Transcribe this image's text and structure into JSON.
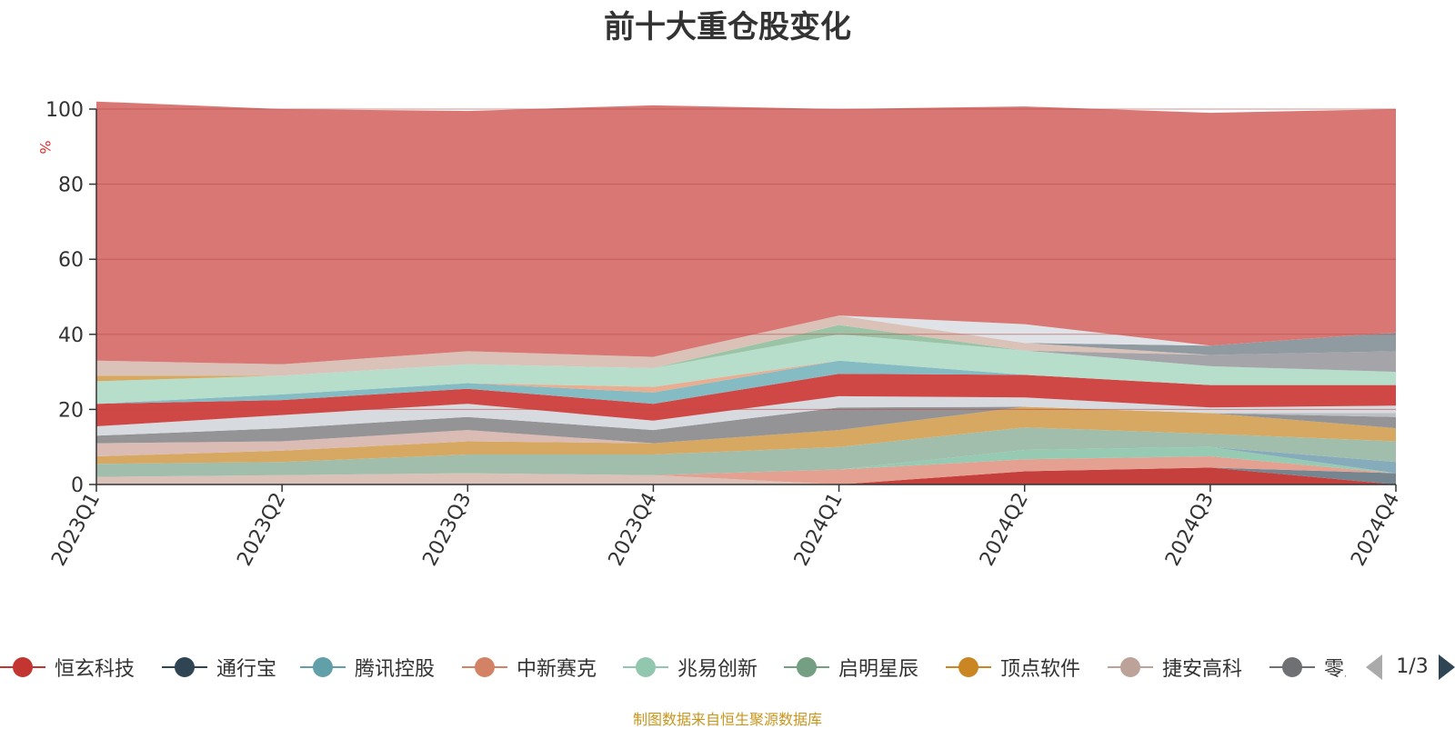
{
  "chart_data": {
    "type": "area",
    "title": "前十大重仓股变化",
    "ylabel": "%",
    "ylim": [
      0,
      100
    ],
    "yticks": [
      0,
      20,
      40,
      60,
      80,
      100
    ],
    "stacked": true,
    "grid": true,
    "categories": [
      "2023Q1",
      "2023Q2",
      "2023Q3",
      "2023Q4",
      "2024Q1",
      "2024Q2",
      "2024Q3",
      "2024Q4"
    ],
    "series": [
      {
        "name": "",
        "color": "#d9bfb5",
        "values": [
          2.0,
          2.5,
          3.0,
          2.5,
          0.0,
          0.0,
          0.0,
          0.0
        ]
      },
      {
        "name": "",
        "color": "#c23531",
        "values": [
          0.0,
          0.0,
          0.0,
          0.0,
          0.0,
          3.5,
          4.5,
          0.0
        ]
      },
      {
        "name": "",
        "color": "#6e7f8a",
        "values": [
          0.0,
          0.0,
          0.0,
          0.0,
          0.0,
          0.0,
          0.0,
          3.0
        ]
      },
      {
        "name": "",
        "color": "#e39c8c",
        "values": [
          0.0,
          0.0,
          0.0,
          0.0,
          4.0,
          3.2,
          3.0,
          0.0
        ]
      },
      {
        "name": "",
        "color": "#91c7ae",
        "values": [
          0.0,
          0.0,
          0.0,
          0.0,
          0.0,
          2.5,
          2.5,
          0.0
        ]
      },
      {
        "name": "",
        "color": "#7fa8b8",
        "values": [
          0.0,
          0.0,
          0.0,
          0.0,
          0.0,
          0.0,
          0.0,
          3.0
        ]
      },
      {
        "name": "",
        "color": "#9cbba8",
        "values": [
          3.5,
          3.5,
          5.0,
          5.5,
          6.0,
          6.0,
          3.5,
          5.5
        ]
      },
      {
        "name": "",
        "color": "#d4a35a",
        "values": [
          2.0,
          3.0,
          3.5,
          3.0,
          4.5,
          5.5,
          5.5,
          3.5
        ]
      },
      {
        "name": "",
        "color": "#d9b8b0",
        "values": [
          3.5,
          2.5,
          3.0,
          0.0,
          0.0,
          0.0,
          0.0,
          0.0
        ]
      },
      {
        "name": "",
        "color": "#8e8e91",
        "values": [
          2.0,
          3.5,
          3.5,
          3.5,
          6.0,
          0.0,
          0.0,
          3.0
        ]
      },
      {
        "name": "",
        "color": "#b8bcc2",
        "values": [
          0.0,
          0.0,
          0.0,
          0.0,
          0.0,
          0.0,
          0.0,
          1.0
        ]
      },
      {
        "name": "",
        "color": "#d5d9de",
        "values": [
          2.5,
          3.5,
          3.5,
          2.5,
          3.0,
          2.5,
          1.5,
          2.0
        ]
      },
      {
        "name": "",
        "color": "#cd3e3c",
        "values": [
          6.0,
          4.0,
          4.0,
          4.5,
          6.0,
          6.0,
          6.0,
          5.5
        ]
      },
      {
        "name": "",
        "color": "#7eb8c0",
        "values": [
          0.0,
          1.5,
          1.5,
          3.0,
          3.5,
          0.0,
          0.0,
          0.0
        ]
      },
      {
        "name": "",
        "color": "#e8a98c",
        "values": [
          0.0,
          0.0,
          0.0,
          1.5,
          0.0,
          0.0,
          0.0,
          0.0
        ]
      },
      {
        "name": "",
        "color": "#b3dbc8",
        "values": [
          6.0,
          5.0,
          5.0,
          5.0,
          7.0,
          6.5,
          5.0,
          3.5
        ]
      },
      {
        "name": "",
        "color": "#96c0a0",
        "values": [
          0.0,
          0.0,
          0.0,
          0.0,
          2.5,
          0.0,
          0.0,
          0.0
        ]
      },
      {
        "name": "",
        "color": "#d4a35a",
        "values": [
          1.5,
          0.0,
          0.0,
          0.0,
          0.0,
          0.0,
          0.0,
          0.0
        ]
      },
      {
        "name": "",
        "color": "#a0a0a4",
        "values": [
          0.0,
          0.0,
          0.0,
          0.0,
          0.0,
          0.0,
          3.0,
          5.5
        ]
      },
      {
        "name": "",
        "color": "#d9bfb5",
        "values": [
          4.0,
          3.0,
          3.5,
          3.0,
          2.5,
          2.0,
          0.0,
          0.0
        ]
      },
      {
        "name": "",
        "color": "#8a959c",
        "values": [
          0.0,
          0.0,
          0.0,
          0.0,
          0.0,
          0.0,
          2.5,
          5.0
        ]
      },
      {
        "name": "",
        "color": "#dde1e6",
        "values": [
          0.0,
          0.0,
          0.0,
          0.0,
          0.0,
          5.0,
          0.0,
          0.0
        ]
      },
      {
        "name": "",
        "color": "#d6706d",
        "values": [
          69.0,
          68.0,
          64.0,
          67.0,
          55.0,
          58.0,
          62.0,
          59.5
        ]
      }
    ]
  },
  "legend": {
    "items": [
      {
        "label": "恒玄科技",
        "color": "#c23531",
        "icon": "circle-line-icon"
      },
      {
        "label": "通行宝",
        "color": "#2f4554",
        "icon": "circle-line-icon"
      },
      {
        "label": "腾讯控股",
        "color": "#61a0a8",
        "icon": "circle-line-icon"
      },
      {
        "label": "中新赛克",
        "color": "#d48265",
        "icon": "circle-line-icon"
      },
      {
        "label": "兆易创新",
        "color": "#91c7ae",
        "icon": "circle-line-icon"
      },
      {
        "label": "启明星辰",
        "color": "#749f83",
        "icon": "circle-line-icon"
      },
      {
        "label": "顶点软件",
        "color": "#ca8622",
        "icon": "circle-line-icon"
      },
      {
        "label": "捷安高科",
        "color": "#bda29a",
        "icon": "circle-line-icon"
      },
      {
        "label": "零点",
        "color": "#6e7074",
        "icon": "circle-line-icon"
      }
    ],
    "pager": {
      "text": "1/3",
      "prev_icon": "triangle-left-icon",
      "next_icon": "triangle-right-icon"
    }
  },
  "footer": {
    "text": "制图数据来自恒生聚源数据库"
  }
}
